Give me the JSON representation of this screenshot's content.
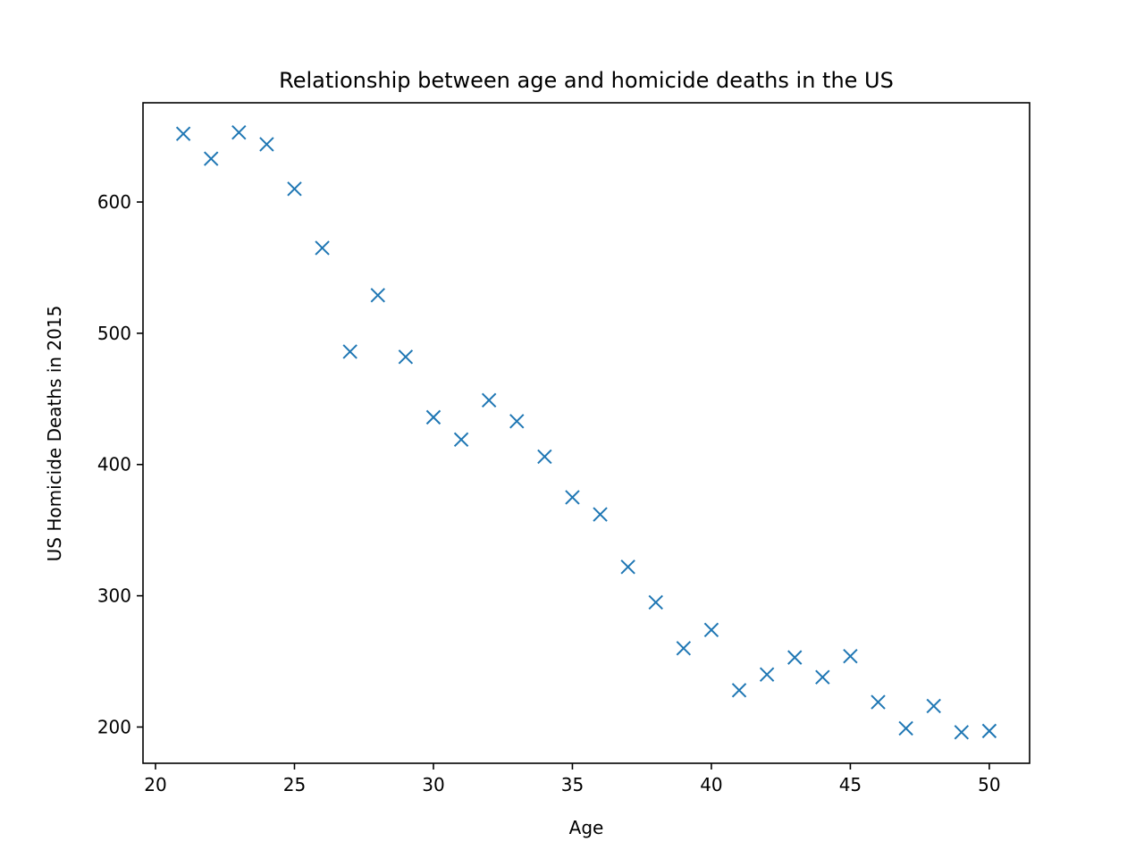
{
  "chart_data": {
    "type": "scatter",
    "title": "Relationship between age and homicide deaths in the US",
    "xlabel": "Age",
    "ylabel": "US Homicide Deaths in 2015",
    "xlim": [
      19.55,
      51.45
    ],
    "ylim": [
      172.4,
      675.6
    ],
    "xticks": [
      20,
      25,
      30,
      35,
      40,
      45,
      50
    ],
    "yticks": [
      200,
      300,
      400,
      500,
      600
    ],
    "marker": "x",
    "color": "#1f77b4",
    "grid": false,
    "legend": "none",
    "x": [
      21,
      22,
      23,
      24,
      25,
      26,
      27,
      28,
      29,
      30,
      31,
      32,
      33,
      34,
      35,
      36,
      37,
      38,
      39,
      40,
      41,
      42,
      43,
      44,
      45,
      46,
      47,
      48,
      49,
      50
    ],
    "y": [
      652,
      633,
      653,
      644,
      610,
      565,
      486,
      529,
      482,
      436,
      419,
      449,
      433,
      406,
      375,
      362,
      322,
      295,
      260,
      274,
      228,
      240,
      253,
      238,
      254,
      219,
      199,
      216,
      196,
      197
    ]
  }
}
